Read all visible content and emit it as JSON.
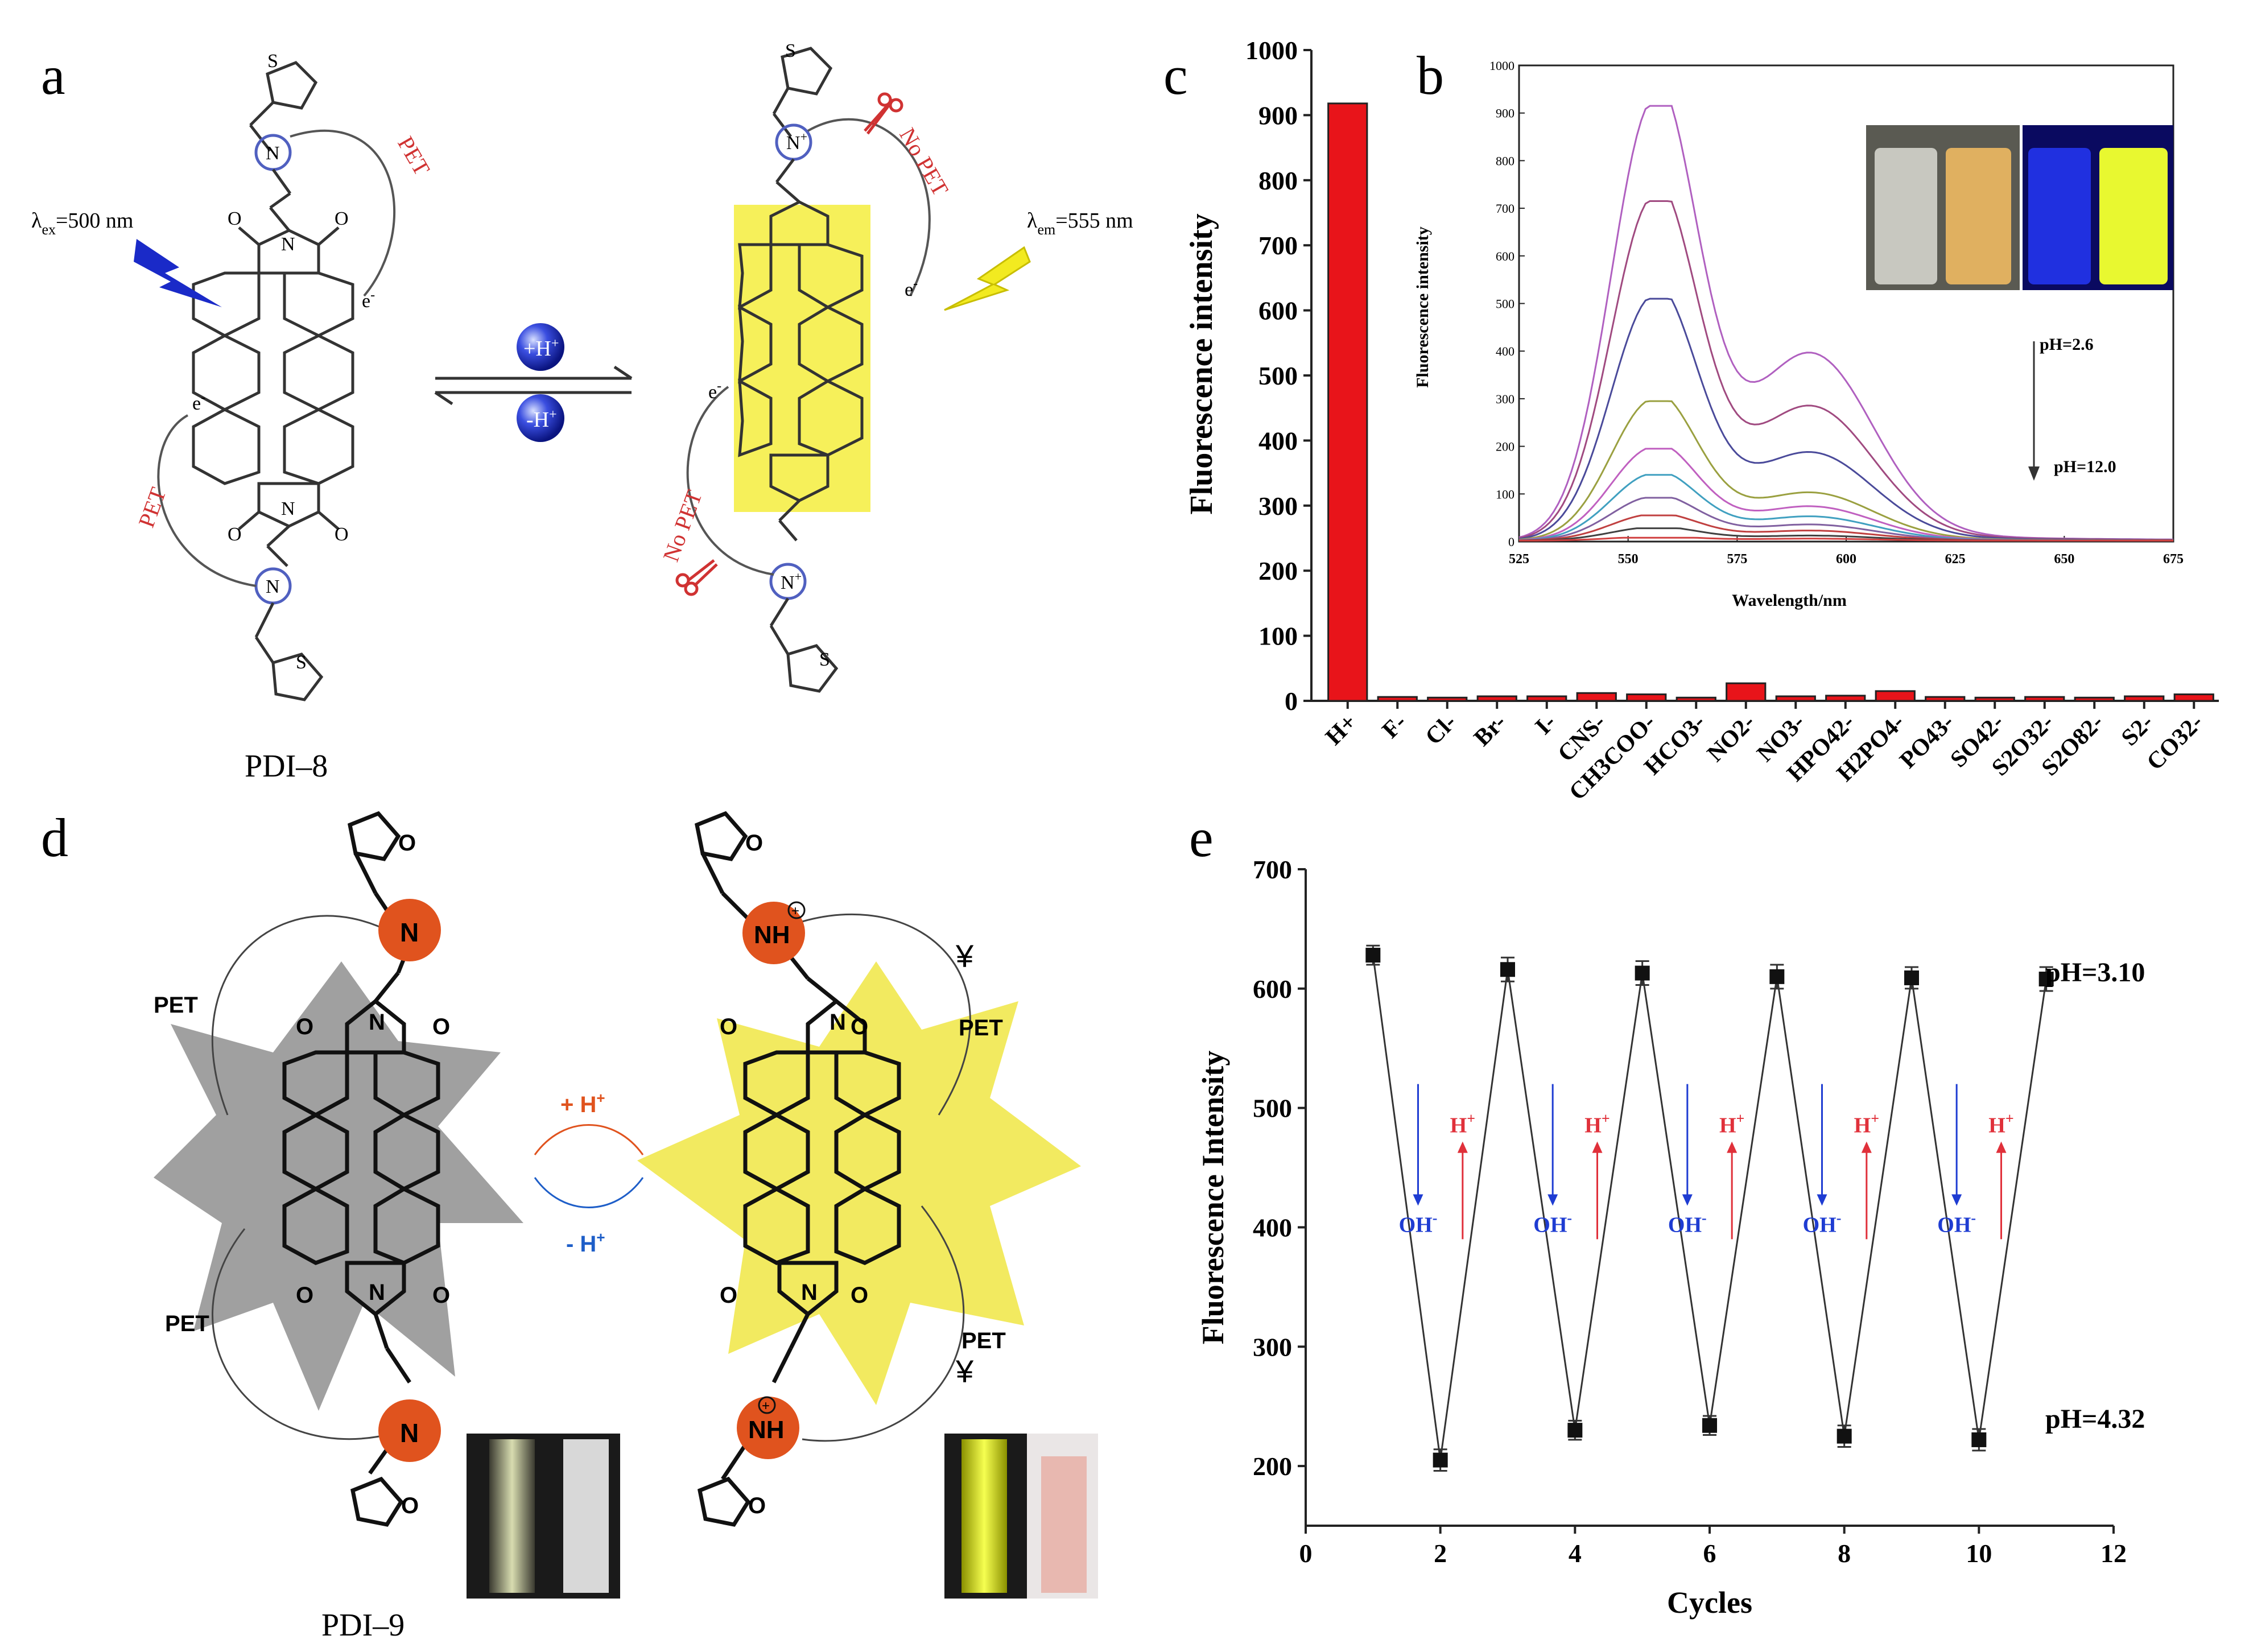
{
  "panels": {
    "a": {
      "label": "a",
      "compound": "PDI–8",
      "lambda_ex": "λ",
      "ex_sub": "ex",
      "ex_val": "=500 nm",
      "lambda_em": "λ",
      "em_sub": "em",
      "em_val": "=555 nm",
      "pet": "PET",
      "no_pet": "No PET",
      "electron": "e",
      "electron_sup": "-",
      "plus_h": "+H",
      "minus_h": "-H",
      "h_sup": "+",
      "atom_n": "N",
      "atom_s": "S",
      "atom_o": "O",
      "n_plus": "+"
    },
    "b": {
      "label": "b",
      "ylabel": "Fluorescence intensity",
      "xlabel": "Wavelength/nm",
      "ph_top": "pH=2.6",
      "ph_bottom": "pH=12.0"
    },
    "c": {
      "label": "c",
      "ylabel": "Fluorescence intensity"
    },
    "d": {
      "label": "d",
      "compound": "PDI–9",
      "pet": "PET",
      "plus_h": "+ H",
      "minus_h": "- H",
      "h_sup": "+",
      "yen": "¥",
      "atom_n": "N",
      "atom_nh": "NH",
      "atom_o": "O",
      "plus_mark": "+"
    },
    "e": {
      "label": "e",
      "ylabel": "Fluorescence Intensity",
      "xlabel": "Cycles",
      "ph_high": "pH=3.10",
      "ph_low": "pH=4.32",
      "oh": "OH",
      "oh_sup": "-",
      "h": "H",
      "h_sup": "+"
    }
  },
  "colors": {
    "bar": "#e8141a",
    "blue_arrow": "#1e3cd2",
    "red_arrow": "#e0303a",
    "orange_atom": "#e0531e",
    "yellow_star": "#f2ea60",
    "gray_star": "#a0a0a0",
    "pet_red": "#d03232"
  },
  "chart_data": [
    {
      "id": "c",
      "type": "bar",
      "title": "",
      "ylabel": "Fluorescence intensity",
      "xlabel": "",
      "ylim": [
        0,
        1000
      ],
      "yticks": [
        "0",
        "100",
        "200",
        "300",
        "400",
        "500",
        "600",
        "700",
        "800",
        "900",
        "1000"
      ],
      "categories": [
        "H+",
        "F-",
        "Cl-",
        "Br-",
        "I-",
        "CNS-",
        "CH3COO-",
        "HCO3-",
        "NO2-",
        "NO3-",
        "HPO42-",
        "H2PO4-",
        "PO43-",
        "SO42-",
        "S2O32-",
        "S2O82-",
        "S2-",
        "CO32-"
      ],
      "values": [
        918,
        6,
        5,
        7,
        7,
        12,
        10,
        5,
        27,
        7,
        8,
        15,
        6,
        5,
        6,
        5,
        7,
        10
      ]
    },
    {
      "id": "b",
      "type": "line",
      "xlabel": "Wavelength/nm",
      "ylabel": "Fluorescence intensity",
      "xlim": [
        525,
        675
      ],
      "ylim": [
        0,
        1000
      ],
      "xticks": [
        "525",
        "550",
        "575",
        "600",
        "625",
        "650",
        "675"
      ],
      "yticks": [
        "0",
        "100",
        "200",
        "300",
        "400",
        "500",
        "600",
        "700",
        "800",
        "900",
        "1000"
      ],
      "series": [
        {
          "name": "pH=2.6",
          "peak": 915,
          "shoulder": 375,
          "color": "#b060c0"
        },
        {
          "name": "",
          "peak": 715,
          "shoulder": 268,
          "color": "#a04a80"
        },
        {
          "name": "",
          "peak": 510,
          "shoulder": 175,
          "color": "#4a4a9a"
        },
        {
          "name": "",
          "peak": 295,
          "shoulder": 95,
          "color": "#9aa040"
        },
        {
          "name": "",
          "peak": 195,
          "shoulder": 68,
          "color": "#c060c0"
        },
        {
          "name": "",
          "peak": 140,
          "shoulder": 48,
          "color": "#40a0c0"
        },
        {
          "name": "",
          "peak": 92,
          "shoulder": 32,
          "color": "#8060a0"
        },
        {
          "name": "",
          "peak": 55,
          "shoulder": 20,
          "color": "#c04040"
        },
        {
          "name": "",
          "peak": 28,
          "shoulder": 10,
          "color": "#404040"
        },
        {
          "name": "pH=12.0",
          "peak": 8,
          "shoulder": 4,
          "color": "#d04040"
        }
      ]
    },
    {
      "id": "e",
      "type": "line",
      "xlabel": "Cycles",
      "ylabel": "Fluorescence Intensity",
      "xlim": [
        0,
        12
      ],
      "ylim": [
        150,
        700
      ],
      "xticks": [
        "0",
        "2",
        "4",
        "6",
        "8",
        "10",
        "12"
      ],
      "yticks": [
        "200",
        "300",
        "400",
        "500",
        "600",
        "700"
      ],
      "x": [
        1,
        2,
        3,
        4,
        5,
        6,
        7,
        8,
        9,
        10,
        11
      ],
      "y": [
        628,
        205,
        616,
        230,
        613,
        234,
        610,
        225,
        609,
        222,
        608
      ],
      "err": [
        8,
        9,
        10,
        8,
        10,
        8,
        10,
        9,
        9,
        9,
        10
      ]
    }
  ]
}
